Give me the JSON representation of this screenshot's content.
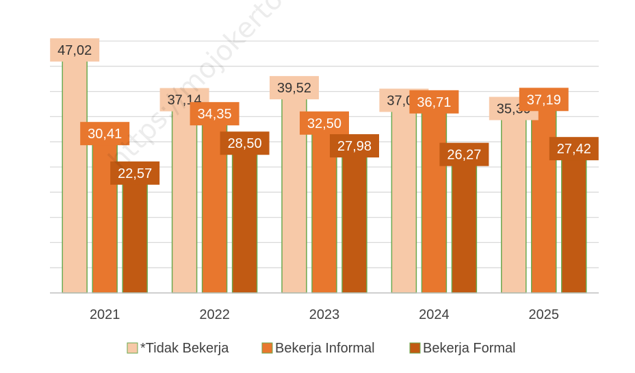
{
  "watermark": "https://mojokertokab.bps.go.id",
  "chart_data": {
    "type": "bar",
    "categories": [
      "2021",
      "2022",
      "2023",
      "2024",
      "2025"
    ],
    "series": [
      {
        "name": "*Tidak Bekerja",
        "color": "#F7C9A8",
        "labelColor": "#333333",
        "values": [
          47.02,
          37.14,
          39.52,
          37.02,
          35.39
        ],
        "labels": [
          "47,02",
          "37,14",
          "39,52",
          "37,02",
          "35,39"
        ]
      },
      {
        "name": "Bekerja Informal",
        "color": "#E8772E",
        "labelColor": "#ffffff",
        "values": [
          30.41,
          34.35,
          32.5,
          36.71,
          37.19
        ],
        "labels": [
          "30,41",
          "34,35",
          "32,50",
          "36,71",
          "37,19"
        ]
      },
      {
        "name": "Bekerja Formal",
        "color": "#C15A13",
        "labelColor": "#ffffff",
        "values": [
          22.57,
          28.5,
          27.98,
          26.27,
          27.42
        ],
        "labels": [
          "22,57",
          "28,50",
          "27,98",
          "26,27",
          "27,42"
        ]
      }
    ],
    "ylim": [
      0,
      50
    ],
    "ytick_step": 5,
    "grid": true,
    "legend": "bottom",
    "bar_border_color": "#6AA84F"
  }
}
